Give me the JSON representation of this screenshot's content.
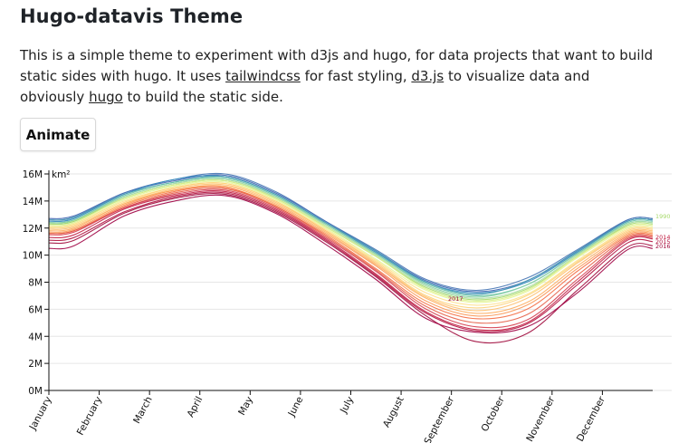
{
  "page": {
    "title": "Hugo-datavis Theme",
    "intro": {
      "text_before": "This is a simple theme to experiment with d3js and hugo, for data projects that want to build static sides with hugo. It uses ",
      "link_tailwind": "tailwindcss",
      "text_mid1": " for fast styling, ",
      "link_d3": "d3.js",
      "text_mid2": " to visualize data and obviously ",
      "link_hugo": "hugo",
      "text_after": " to build the static side."
    },
    "animate_button_label": "Animate"
  },
  "chart_data": {
    "type": "line",
    "ylabel": "km²",
    "ylim": [
      0,
      16000000
    ],
    "yticks": [
      0,
      2000000,
      4000000,
      6000000,
      8000000,
      10000000,
      12000000,
      14000000,
      16000000
    ],
    "ytick_labels": [
      "0M",
      "2M",
      "4M",
      "6M",
      "8M",
      "10M",
      "12M",
      "14M",
      "16M"
    ],
    "x_tick_labels": [
      "January",
      "February",
      "March",
      "April",
      "May",
      "June",
      "July",
      "August",
      "September",
      "October",
      "November",
      "December"
    ],
    "grid": true,
    "colors": {
      "early_years": "#3b62b0",
      "mid_years": "#fee08b",
      "late_years": "#9e0142"
    },
    "labeled_years": [
      {
        "year": "1990",
        "color": "#a6d96a"
      },
      {
        "year": "2014",
        "color": "#c11d42"
      },
      {
        "year": "2015",
        "color": "#b1123f"
      },
      {
        "year": "2016",
        "color": "#a00a3c"
      },
      {
        "year": "2017",
        "color": "#9e0142"
      }
    ],
    "series": [
      {
        "values": [
          12.9,
          14.6,
          15.5,
          15.9,
          14.6,
          12.5,
          10.3,
          8.1,
          7.3,
          8.1,
          10.3,
          12.6
        ],
        "color": "#3b62b0"
      },
      {
        "values": [
          12.8,
          14.6,
          15.6,
          16.0,
          14.7,
          12.5,
          10.4,
          8.2,
          7.4,
          8.3,
          10.4,
          12.6
        ],
        "color": "#4574b4"
      },
      {
        "values": [
          12.7,
          14.5,
          15.6,
          15.8,
          14.5,
          12.4,
          10.2,
          8.0,
          7.2,
          8.0,
          10.2,
          12.5
        ],
        "color": "#3288bd"
      },
      {
        "values": [
          12.8,
          14.5,
          15.4,
          15.8,
          14.5,
          12.4,
          10.3,
          8.0,
          7.1,
          8.1,
          10.3,
          12.5
        ],
        "color": "#499bb4"
      },
      {
        "values": [
          12.6,
          14.4,
          15.4,
          15.7,
          14.4,
          12.3,
          10.1,
          7.9,
          7.0,
          7.8,
          10.1,
          12.4
        ],
        "color": "#66c2a5"
      },
      {
        "values": [
          12.6,
          14.3,
          15.3,
          15.6,
          14.3,
          12.3,
          10.1,
          7.8,
          6.9,
          7.8,
          10.1,
          12.3
        ],
        "color": "#88cfa4"
      },
      {
        "values": [
          12.5,
          14.3,
          15.3,
          15.6,
          14.3,
          12.2,
          10.0,
          7.7,
          6.8,
          7.6,
          10.0,
          12.3
        ],
        "color": "#abdda4"
      },
      {
        "values": [
          12.5,
          14.2,
          15.2,
          15.5,
          14.2,
          12.1,
          9.9,
          7.6,
          6.7,
          7.5,
          9.9,
          12.2
        ],
        "color": "#a6d96a"
      },
      {
        "values": [
          12.4,
          14.2,
          15.2,
          15.5,
          14.2,
          12.1,
          9.9,
          7.5,
          6.6,
          7.4,
          9.9,
          12.1
        ],
        "color": "#d9ef8b"
      },
      {
        "values": [
          12.3,
          14.1,
          15.1,
          15.4,
          14.1,
          12.0,
          9.7,
          7.4,
          6.5,
          7.3,
          9.8,
          12.0
        ],
        "color": "#e6f598"
      },
      {
        "values": [
          12.3,
          14.0,
          15.0,
          15.3,
          14.0,
          11.9,
          9.6,
          7.2,
          6.3,
          7.1,
          9.6,
          11.9
        ],
        "color": "#fee08b"
      },
      {
        "values": [
          12.2,
          13.9,
          15.0,
          15.3,
          14.0,
          11.8,
          9.5,
          7.0,
          6.1,
          7.0,
          9.5,
          11.8
        ],
        "color": "#fdd17a"
      },
      {
        "values": [
          12.1,
          13.8,
          14.9,
          15.2,
          13.9,
          11.8,
          9.4,
          6.9,
          5.9,
          6.8,
          9.4,
          11.7
        ],
        "color": "#fdc06f"
      },
      {
        "values": [
          12.0,
          13.8,
          14.8,
          15.1,
          13.8,
          11.7,
          9.3,
          6.8,
          5.7,
          6.5,
          9.2,
          11.6
        ],
        "color": "#fdae61"
      },
      {
        "values": [
          11.9,
          13.7,
          14.8,
          15.0,
          13.7,
          11.6,
          9.2,
          6.6,
          5.5,
          6.3,
          9.0,
          11.5
        ],
        "color": "#fa9856"
      },
      {
        "values": [
          11.8,
          13.6,
          14.7,
          15.0,
          13.6,
          11.5,
          9.0,
          6.4,
          5.3,
          6.0,
          8.8,
          11.4
        ],
        "color": "#f46d43"
      },
      {
        "values": [
          11.8,
          13.5,
          14.6,
          14.9,
          13.6,
          11.4,
          8.9,
          6.2,
          5.0,
          5.6,
          8.5,
          11.3
        ],
        "color": "#e55f48"
      },
      {
        "values": [
          11.7,
          13.5,
          14.5,
          14.8,
          13.5,
          11.3,
          8.8,
          6.0,
          4.7,
          5.2,
          8.2,
          11.2
        ],
        "color": "#d53e4f"
      },
      {
        "values": [
          11.5,
          13.4,
          14.4,
          14.7,
          13.4,
          11.2,
          8.6,
          5.8,
          4.5,
          5.0,
          8.0,
          11.1
        ],
        "color": "#c11d42"
      },
      {
        "values": [
          11.3,
          13.2,
          14.3,
          14.6,
          13.3,
          11.1,
          8.5,
          5.7,
          4.4,
          4.9,
          7.8,
          10.9
        ],
        "color": "#b1123f"
      },
      {
        "values": [
          11.1,
          13.1,
          14.2,
          14.5,
          13.2,
          11.0,
          8.4,
          5.5,
          3.6,
          4.2,
          7.4,
          10.6
        ],
        "color": "#a00a3c"
      },
      {
        "values": [
          10.7,
          12.9,
          14.0,
          14.4,
          13.1,
          10.8,
          8.2,
          5.3,
          4.3,
          4.7,
          7.2,
          10.4
        ],
        "color": "#9e0142"
      }
    ]
  }
}
